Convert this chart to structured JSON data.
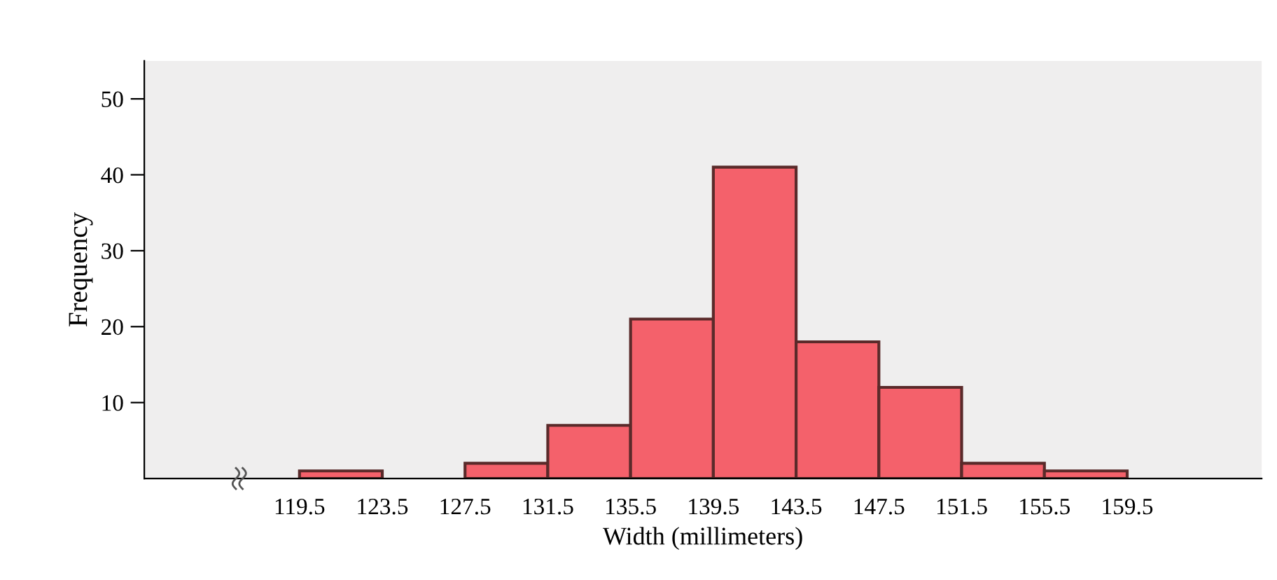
{
  "chart_data": {
    "type": "histogram",
    "xlabel": "Width (millimeters)",
    "ylabel": "Frequency",
    "bins": [
      119.5,
      123.5,
      127.5,
      131.5,
      135.5,
      139.5,
      143.5,
      147.5,
      151.5,
      155.5,
      159.5
    ],
    "values": [
      1,
      0,
      2,
      7,
      21,
      41,
      18,
      12,
      2,
      1
    ],
    "color": "#f4616b",
    "xlim": [
      112,
      166
    ],
    "ylim": [
      0,
      55
    ],
    "xticks": [
      119.5,
      123.5,
      127.5,
      131.5,
      135.5,
      139.5,
      143.5,
      147.5,
      151.5,
      155.5,
      159.5
    ],
    "yticks": [
      10,
      20,
      30,
      40,
      50
    ],
    "grid": false
  }
}
